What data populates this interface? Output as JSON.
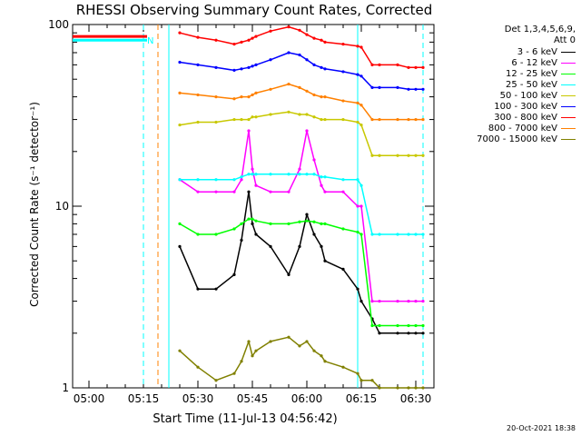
{
  "title": "RHESSI Observing Summary Count Rates, Corrected",
  "legend": {
    "header_line1": "Det 1,3,4,5,6,9,",
    "header_line2": "Att 0",
    "entries": [
      {
        "label": "3 - 6 keV",
        "color": "#000000"
      },
      {
        "label": "6 - 12 keV",
        "color": "#ff00ff"
      },
      {
        "label": "12 - 25 keV",
        "color": "#00ff00"
      },
      {
        "label": "25 - 50 keV",
        "color": "#00ffff"
      },
      {
        "label": "50 - 100 keV",
        "color": "#c8c800"
      },
      {
        "label": "100 - 300 keV",
        "color": "#0000ff"
      },
      {
        "label": "300 - 800 keV",
        "color": "#ff0000"
      },
      {
        "label": "800 - 7000 keV",
        "color": "#ff8000"
      },
      {
        "label": "7000 - 15000 keV",
        "color": "#808000"
      }
    ]
  },
  "timestamp": "20-Oct-2021 18:38",
  "chart_data": {
    "type": "line",
    "title": "RHESSI Observing Summary Count Rates, Corrected",
    "xlabel": "Start Time (11-Jul-13 04:56:42)",
    "ylabel": "Corrected Count Rate (s⁻¹ detector⁻¹)",
    "y_scale": "log",
    "ylim": [
      1,
      100
    ],
    "x_tick_labels": [
      "05:00",
      "05:15",
      "05:30",
      "05:45",
      "06:00",
      "06:15",
      "06:30"
    ],
    "x_tick_minutes": [
      0,
      15,
      30,
      45,
      60,
      75,
      90
    ],
    "x_range_minutes": [
      -4.5,
      95
    ],
    "y_tick_labels": [
      "1",
      "10",
      "100"
    ],
    "y_tick_values": [
      1,
      10,
      100
    ],
    "x_minutes": [
      22,
      25,
      30,
      35,
      40,
      42,
      44,
      45,
      46,
      50,
      55,
      58,
      60,
      62,
      64,
      65,
      70,
      74,
      75,
      78,
      80,
      85,
      88,
      90,
      92
    ],
    "series": [
      {
        "name": "3 - 6 keV",
        "color": "#000000",
        "values": [
          null,
          6,
          3.5,
          3.5,
          4.2,
          6.5,
          12,
          8,
          7,
          6,
          4.2,
          6,
          9,
          7,
          6,
          5,
          4.5,
          3.5,
          3,
          2.4,
          2,
          2,
          2,
          2,
          2
        ]
      },
      {
        "name": "6 - 12 keV",
        "color": "#ff00ff",
        "values": [
          null,
          14,
          12,
          12,
          12,
          14,
          26,
          16,
          13,
          12,
          12,
          16,
          26,
          18,
          13,
          12,
          12,
          10,
          10,
          3,
          3,
          3,
          3,
          3,
          3
        ]
      },
      {
        "name": "12 - 25 keV",
        "color": "#00ff00",
        "values": [
          null,
          8,
          7,
          7,
          7.5,
          8,
          8.5,
          8.5,
          8.3,
          8,
          8,
          8.2,
          8.3,
          8.2,
          8,
          8,
          7.5,
          7.2,
          7,
          2.2,
          2.2,
          2.2,
          2.2,
          2.2,
          2.2
        ]
      },
      {
        "name": "25 - 50 keV",
        "color": "#00ffff",
        "values": [
          null,
          14,
          14,
          14,
          14,
          14.5,
          15,
          15,
          15,
          15,
          15,
          15,
          15,
          15,
          14.5,
          14.5,
          14,
          14,
          13,
          7,
          7,
          7,
          7,
          7,
          7
        ]
      },
      {
        "name": "50 - 100 keV",
        "color": "#c8c800",
        "values": [
          null,
          28,
          29,
          29,
          30,
          30,
          30,
          31,
          31,
          32,
          33,
          32,
          32,
          31,
          30,
          30,
          30,
          29,
          28,
          19,
          19,
          19,
          19,
          19,
          19
        ]
      },
      {
        "name": "100 - 300 keV",
        "color": "#0000ff",
        "values": [
          null,
          62,
          60,
          58,
          56,
          57,
          58,
          59,
          60,
          64,
          70,
          68,
          64,
          60,
          58,
          57,
          55,
          53,
          52,
          45,
          45,
          45,
          44,
          44,
          44
        ]
      },
      {
        "name": "300 - 800 keV",
        "color": "#ff0000",
        "values": [
          null,
          90,
          85,
          82,
          78,
          80,
          82,
          84,
          86,
          92,
          97,
          93,
          88,
          84,
          82,
          80,
          78,
          76,
          75,
          60,
          60,
          60,
          58,
          58,
          58
        ]
      },
      {
        "name": "800 - 7000 keV",
        "color": "#ff8000",
        "values": [
          null,
          42,
          41,
          40,
          39,
          40,
          40,
          41,
          42,
          44,
          47,
          45,
          43,
          41,
          40,
          40,
          38,
          37,
          36,
          30,
          30,
          30,
          30,
          30,
          30
        ]
      },
      {
        "name": "7000 - 15000 keV",
        "color": "#808000",
        "values": [
          null,
          1.6,
          1.3,
          1.1,
          1.2,
          1.4,
          1.8,
          1.5,
          1.6,
          1.8,
          1.9,
          1.7,
          1.8,
          1.6,
          1.5,
          1.4,
          1.3,
          1.2,
          1.1,
          1.1,
          1,
          1,
          1,
          1,
          1
        ]
      }
    ],
    "flat_segments": [
      {
        "series": "300 - 800 keV",
        "x_range": [
          -4.5,
          16
        ],
        "value": 86
      },
      {
        "series": "25 - 50 keV",
        "x_range": [
          -4.5,
          16
        ],
        "value": 82
      }
    ],
    "markers": [
      {
        "kind": "vline",
        "x": 15,
        "color": "#00ffff",
        "style": "dashed"
      },
      {
        "kind": "vline",
        "x": 19,
        "color": "#ff8000",
        "style": "dashed"
      },
      {
        "kind": "vline",
        "x": 22,
        "color": "#00ffff",
        "style": "solid"
      },
      {
        "kind": "vline",
        "x": 74,
        "color": "#00ffff",
        "style": "solid"
      },
      {
        "kind": "vline",
        "x": 92,
        "color": "#00ffff",
        "style": "dashed"
      }
    ],
    "annotations": [
      {
        "text": "N",
        "x": 16,
        "y": 82,
        "color": "#00ffff"
      }
    ]
  }
}
